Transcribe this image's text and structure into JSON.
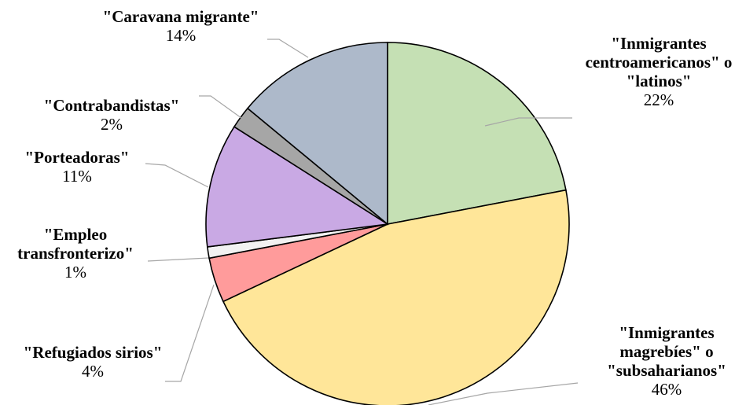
{
  "chart_data": {
    "type": "pie",
    "title": "",
    "slices": [
      {
        "name_lines": [
          "\"Inmigrantes",
          "centroamericanos\" o",
          "\"latinos\""
        ],
        "value": 22,
        "label": "22%",
        "color": "#c5e0b4"
      },
      {
        "name_lines": [
          "\"Inmigrantes",
          "magrebíes\" o",
          "\"subsaharianos\""
        ],
        "value": 46,
        "label": "46%",
        "color": "#ffe699"
      },
      {
        "name_lines": [
          "\"Refugiados sirios\""
        ],
        "value": 4,
        "label": "4%",
        "color": "#ff9b9b"
      },
      {
        "name_lines": [
          "\"Empleo",
          "transfronterizo\""
        ],
        "value": 1,
        "label": "1%",
        "color": "#f2f2f2"
      },
      {
        "name_lines": [
          "\"Porteadoras\""
        ],
        "value": 11,
        "label": "11%",
        "color": "#c9a9e4"
      },
      {
        "name_lines": [
          "\"Contrabandistas\""
        ],
        "value": 2,
        "label": "2%",
        "color": "#a6a6a6"
      },
      {
        "name_lines": [
          "\"Caravana migrante\""
        ],
        "value": 14,
        "label": "14%",
        "color": "#adb9ca"
      }
    ]
  }
}
